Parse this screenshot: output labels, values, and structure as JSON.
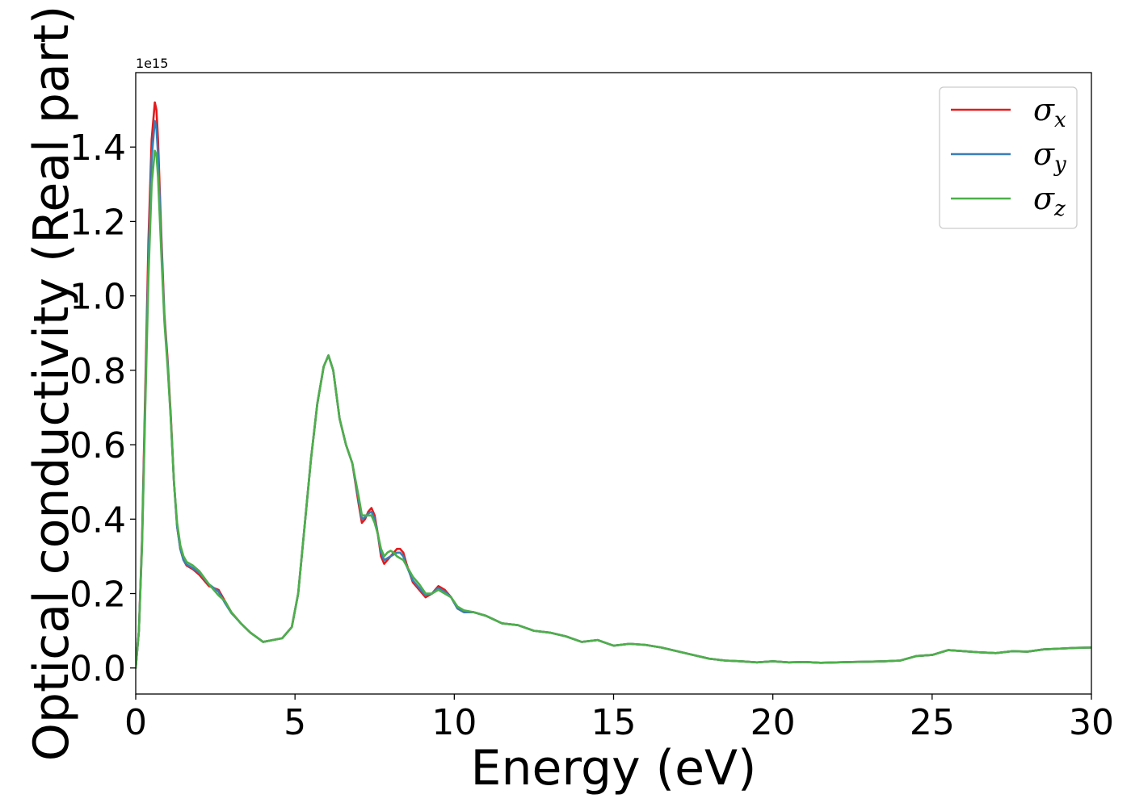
{
  "chart_data": {
    "type": "line",
    "title": "",
    "xlabel": "Energy (eV)",
    "ylabel": "Optical conductivity (Real part)",
    "y_offset_text": "1e15",
    "xlim": [
      0,
      30
    ],
    "ylim": [
      -0.07,
      1.6
    ],
    "x_ticks": [
      0,
      5,
      10,
      15,
      20,
      25,
      30
    ],
    "x_tick_labels": [
      "0",
      "5",
      "10",
      "15",
      "20",
      "25",
      "30"
    ],
    "y_ticks": [
      0.0,
      0.2,
      0.4,
      0.6,
      0.8,
      1.0,
      1.2,
      1.4
    ],
    "y_tick_labels": [
      "0.0",
      "0.2",
      "0.4",
      "0.6",
      "0.8",
      "1.0",
      "1.2",
      "1.4"
    ],
    "grid": false,
    "legend_position": "top-right",
    "series": [
      {
        "name": "σx",
        "legend_base": "σ",
        "legend_sub": "x",
        "color": "#e41a1c",
        "x": [
          0,
          0.1,
          0.2,
          0.3,
          0.4,
          0.5,
          0.6,
          0.65,
          0.7,
          0.8,
          0.9,
          1.0,
          1.1,
          1.2,
          1.3,
          1.4,
          1.5,
          1.6,
          1.8,
          2.0,
          2.3,
          2.6,
          2.8,
          3.0,
          3.3,
          3.6,
          4.0,
          4.3,
          4.6,
          4.9,
          5.1,
          5.3,
          5.5,
          5.7,
          5.9,
          6.05,
          6.2,
          6.4,
          6.6,
          6.8,
          7.0,
          7.1,
          7.2,
          7.3,
          7.4,
          7.5,
          7.6,
          7.7,
          7.8,
          7.9,
          8.0,
          8.1,
          8.2,
          8.3,
          8.4,
          8.5,
          8.7,
          8.9,
          9.1,
          9.3,
          9.5,
          9.7,
          9.9,
          10.1,
          10.3,
          10.6,
          11.0,
          11.5,
          12.0,
          12.5,
          13.0,
          13.5,
          14.0,
          14.5,
          15.0,
          15.5,
          16.0,
          16.5,
          17.0,
          17.5,
          18.0,
          18.5,
          19.0,
          19.5,
          20.0,
          20.5,
          21.0,
          21.5,
          22.0,
          22.5,
          23.0,
          23.5,
          24.0,
          24.5,
          25.0,
          25.5,
          26.0,
          26.5,
          27.0,
          27.5,
          28.0,
          28.5,
          29.0,
          29.5,
          30.0
        ],
        "values": [
          0.0,
          0.1,
          0.35,
          0.75,
          1.15,
          1.42,
          1.52,
          1.5,
          1.42,
          1.17,
          0.95,
          0.83,
          0.68,
          0.5,
          0.38,
          0.32,
          0.29,
          0.275,
          0.265,
          0.25,
          0.22,
          0.21,
          0.18,
          0.15,
          0.12,
          0.095,
          0.07,
          0.075,
          0.08,
          0.11,
          0.2,
          0.38,
          0.56,
          0.71,
          0.81,
          0.84,
          0.8,
          0.67,
          0.6,
          0.55,
          0.44,
          0.39,
          0.4,
          0.42,
          0.43,
          0.41,
          0.36,
          0.3,
          0.28,
          0.29,
          0.3,
          0.31,
          0.32,
          0.32,
          0.31,
          0.28,
          0.23,
          0.21,
          0.19,
          0.2,
          0.22,
          0.21,
          0.19,
          0.16,
          0.15,
          0.15,
          0.14,
          0.12,
          0.115,
          0.1,
          0.095,
          0.085,
          0.07,
          0.075,
          0.06,
          0.065,
          0.062,
          0.055,
          0.045,
          0.035,
          0.025,
          0.02,
          0.018,
          0.015,
          0.018,
          0.015,
          0.016,
          0.014,
          0.015,
          0.016,
          0.017,
          0.018,
          0.02,
          0.032,
          0.035,
          0.048,
          0.045,
          0.042,
          0.04,
          0.045,
          0.044,
          0.05,
          0.052,
          0.054,
          0.055
        ]
      },
      {
        "name": "σy",
        "legend_base": "σ",
        "legend_sub": "y",
        "color": "#377eb8",
        "x": [
          0,
          0.1,
          0.2,
          0.3,
          0.4,
          0.5,
          0.6,
          0.65,
          0.7,
          0.8,
          0.9,
          1.0,
          1.1,
          1.2,
          1.3,
          1.4,
          1.5,
          1.6,
          1.8,
          2.0,
          2.3,
          2.6,
          2.8,
          3.0,
          3.3,
          3.6,
          4.0,
          4.3,
          4.6,
          4.9,
          5.1,
          5.3,
          5.5,
          5.7,
          5.9,
          6.05,
          6.2,
          6.4,
          6.6,
          6.8,
          7.0,
          7.1,
          7.2,
          7.3,
          7.4,
          7.5,
          7.6,
          7.7,
          7.8,
          7.9,
          8.0,
          8.1,
          8.2,
          8.3,
          8.4,
          8.5,
          8.7,
          8.9,
          9.1,
          9.3,
          9.5,
          9.7,
          9.9,
          10.1,
          10.3,
          10.6,
          11.0,
          11.5,
          12.0,
          12.5,
          13.0,
          13.5,
          14.0,
          14.5,
          15.0,
          15.5,
          16.0,
          16.5,
          17.0,
          17.5,
          18.0,
          18.5,
          19.0,
          19.5,
          20.0,
          20.5,
          21.0,
          21.5,
          22.0,
          22.5,
          23.0,
          23.5,
          24.0,
          24.5,
          25.0,
          25.5,
          26.0,
          26.5,
          27.0,
          27.5,
          28.0,
          28.5,
          29.0,
          29.5,
          30.0
        ],
        "values": [
          0.0,
          0.1,
          0.34,
          0.72,
          1.1,
          1.37,
          1.47,
          1.45,
          1.38,
          1.15,
          0.94,
          0.82,
          0.67,
          0.5,
          0.38,
          0.32,
          0.29,
          0.278,
          0.268,
          0.255,
          0.225,
          0.205,
          0.175,
          0.148,
          0.12,
          0.095,
          0.07,
          0.075,
          0.08,
          0.11,
          0.2,
          0.38,
          0.56,
          0.71,
          0.81,
          0.84,
          0.8,
          0.67,
          0.6,
          0.55,
          0.45,
          0.4,
          0.405,
          0.415,
          0.42,
          0.4,
          0.36,
          0.31,
          0.29,
          0.295,
          0.3,
          0.305,
          0.31,
          0.31,
          0.3,
          0.275,
          0.235,
          0.215,
          0.195,
          0.2,
          0.215,
          0.205,
          0.19,
          0.16,
          0.15,
          0.15,
          0.14,
          0.12,
          0.115,
          0.1,
          0.095,
          0.085,
          0.07,
          0.075,
          0.06,
          0.065,
          0.062,
          0.055,
          0.045,
          0.035,
          0.025,
          0.02,
          0.018,
          0.015,
          0.018,
          0.015,
          0.016,
          0.014,
          0.015,
          0.016,
          0.017,
          0.018,
          0.02,
          0.032,
          0.035,
          0.048,
          0.045,
          0.042,
          0.04,
          0.045,
          0.044,
          0.05,
          0.052,
          0.054,
          0.055
        ]
      },
      {
        "name": "σz",
        "legend_base": "σ",
        "legend_sub": "z",
        "color": "#4daf4a",
        "x": [
          0,
          0.1,
          0.2,
          0.3,
          0.4,
          0.5,
          0.6,
          0.65,
          0.7,
          0.8,
          0.9,
          1.0,
          1.1,
          1.2,
          1.3,
          1.4,
          1.5,
          1.6,
          1.8,
          2.0,
          2.3,
          2.6,
          2.8,
          3.0,
          3.3,
          3.6,
          4.0,
          4.3,
          4.6,
          4.9,
          5.1,
          5.3,
          5.5,
          5.7,
          5.9,
          6.05,
          6.2,
          6.4,
          6.6,
          6.8,
          7.0,
          7.1,
          7.2,
          7.3,
          7.4,
          7.5,
          7.6,
          7.7,
          7.8,
          7.9,
          8.0,
          8.1,
          8.2,
          8.3,
          8.4,
          8.5,
          8.7,
          8.9,
          9.1,
          9.3,
          9.5,
          9.7,
          9.9,
          10.1,
          10.3,
          10.6,
          11.0,
          11.5,
          12.0,
          12.5,
          13.0,
          13.5,
          14.0,
          14.5,
          15.0,
          15.5,
          16.0,
          16.5,
          17.0,
          17.5,
          18.0,
          18.5,
          19.0,
          19.5,
          20.0,
          20.5,
          21.0,
          21.5,
          22.0,
          22.5,
          23.0,
          23.5,
          24.0,
          24.5,
          25.0,
          25.5,
          26.0,
          26.5,
          27.0,
          27.5,
          28.0,
          28.5,
          29.0,
          29.5,
          30.0
        ],
        "values": [
          0.0,
          0.1,
          0.33,
          0.7,
          1.05,
          1.3,
          1.39,
          1.38,
          1.32,
          1.12,
          0.93,
          0.81,
          0.67,
          0.5,
          0.39,
          0.33,
          0.3,
          0.285,
          0.275,
          0.26,
          0.225,
          0.195,
          0.18,
          0.15,
          0.12,
          0.095,
          0.07,
          0.075,
          0.08,
          0.11,
          0.2,
          0.38,
          0.56,
          0.71,
          0.81,
          0.84,
          0.8,
          0.67,
          0.6,
          0.55,
          0.46,
          0.41,
          0.41,
          0.41,
          0.41,
          0.39,
          0.36,
          0.32,
          0.3,
          0.31,
          0.315,
          0.31,
          0.3,
          0.295,
          0.29,
          0.275,
          0.245,
          0.225,
          0.2,
          0.2,
          0.21,
          0.2,
          0.19,
          0.165,
          0.155,
          0.15,
          0.14,
          0.12,
          0.115,
          0.1,
          0.095,
          0.085,
          0.07,
          0.075,
          0.06,
          0.065,
          0.062,
          0.055,
          0.045,
          0.035,
          0.025,
          0.02,
          0.018,
          0.015,
          0.018,
          0.015,
          0.016,
          0.014,
          0.015,
          0.016,
          0.017,
          0.018,
          0.02,
          0.032,
          0.035,
          0.048,
          0.045,
          0.042,
          0.04,
          0.045,
          0.044,
          0.05,
          0.052,
          0.054,
          0.055
        ]
      }
    ]
  }
}
